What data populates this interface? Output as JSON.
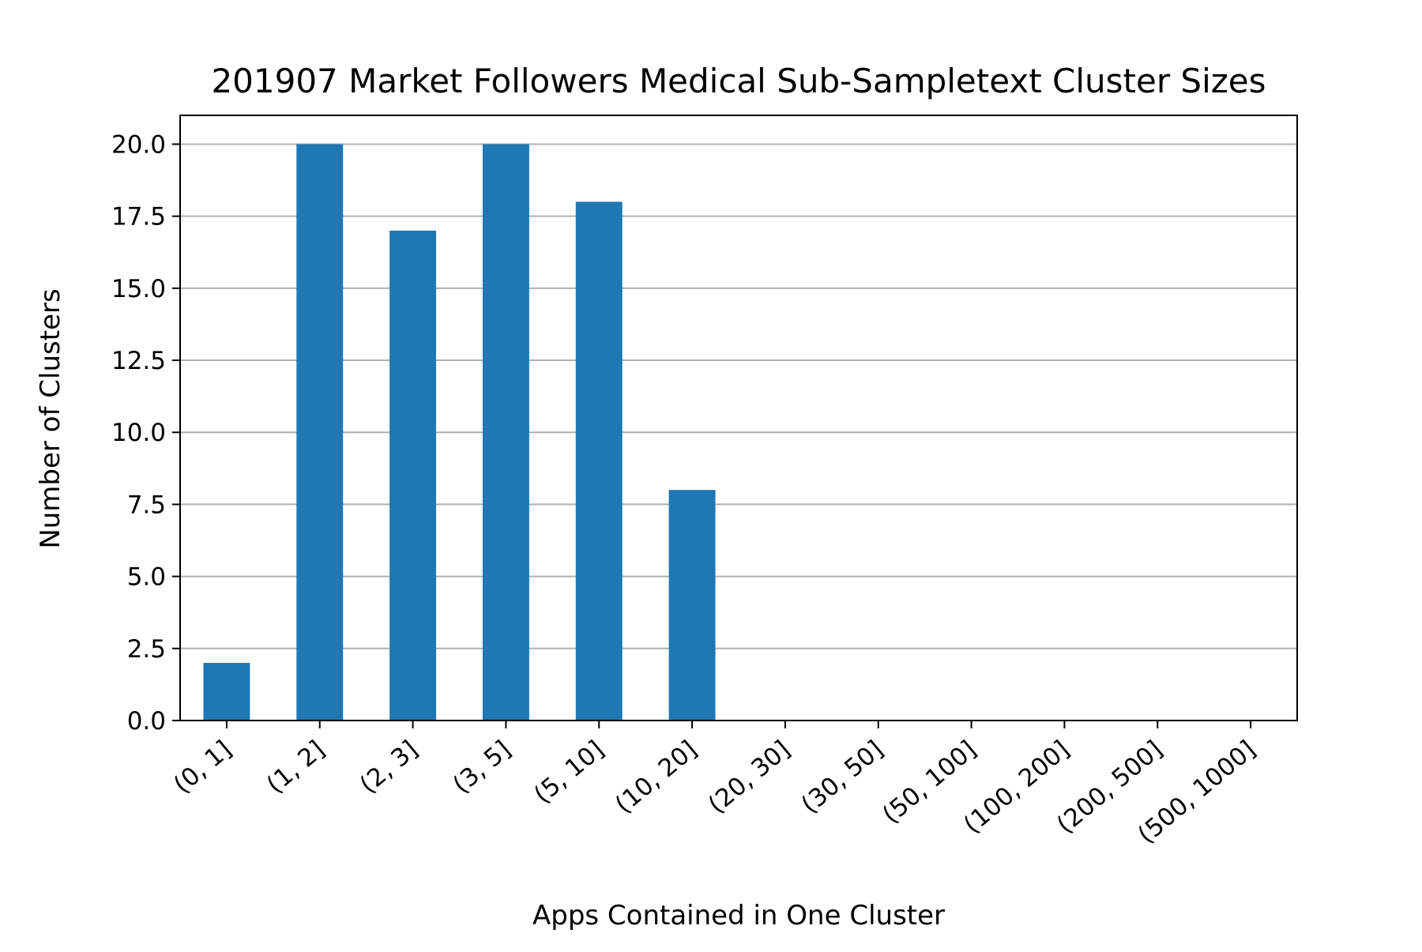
{
  "chart_data": {
    "type": "bar",
    "title": "201907 Market Followers Medical Sub-Sampletext Cluster Sizes",
    "xlabel": "Apps Contained in One Cluster",
    "ylabel": "Number of Clusters",
    "categories": [
      "(0, 1]",
      "(1, 2]",
      "(2, 3]",
      "(3, 5]",
      "(5, 10]",
      "(10, 20]",
      "(20, 30]",
      "(30, 50]",
      "(50, 100]",
      "(100, 200]",
      "(200, 500]",
      "(500, 1000]"
    ],
    "values": [
      2,
      20,
      17,
      20,
      18,
      8,
      0,
      0,
      0,
      0,
      0,
      0
    ],
    "ylim": [
      0,
      21
    ],
    "yticks": [
      "0.0",
      "2.5",
      "5.0",
      "7.5",
      "10.0",
      "12.5",
      "15.0",
      "17.5",
      "20.0"
    ],
    "grid": "horizontal",
    "bar_color": "#1f77b4",
    "grid_color": "#b0b0b0"
  }
}
